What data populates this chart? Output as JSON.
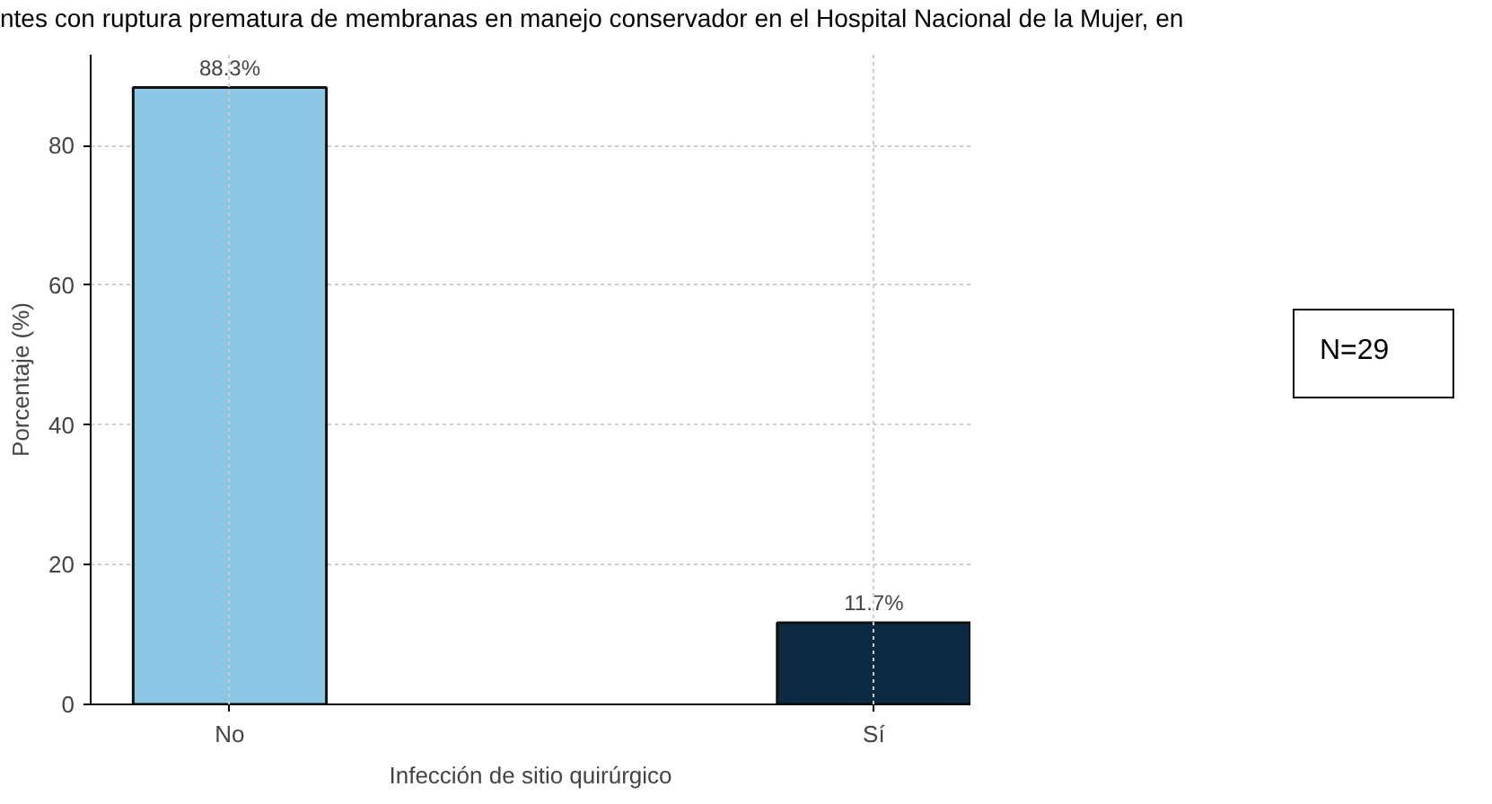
{
  "chart_data": {
    "type": "bar",
    "title": "ntes con ruptura prematura de membranas en manejo conservador en el Hospital Nacional de la Mujer, en",
    "xlabel": "Infección de sitio quirúrgico",
    "ylabel": "Porcentaje (%)",
    "categories": [
      "No",
      "Sí"
    ],
    "values": [
      88.3,
      11.7
    ],
    "colors": [
      "#8cc6e4",
      "#0c2a44"
    ],
    "value_labels": [
      "88.3%",
      "11.7%"
    ],
    "ylim": [
      0,
      93
    ],
    "yticks": [
      0,
      20,
      40,
      60,
      80
    ],
    "grid": true,
    "annotations": [
      "N=29"
    ]
  }
}
